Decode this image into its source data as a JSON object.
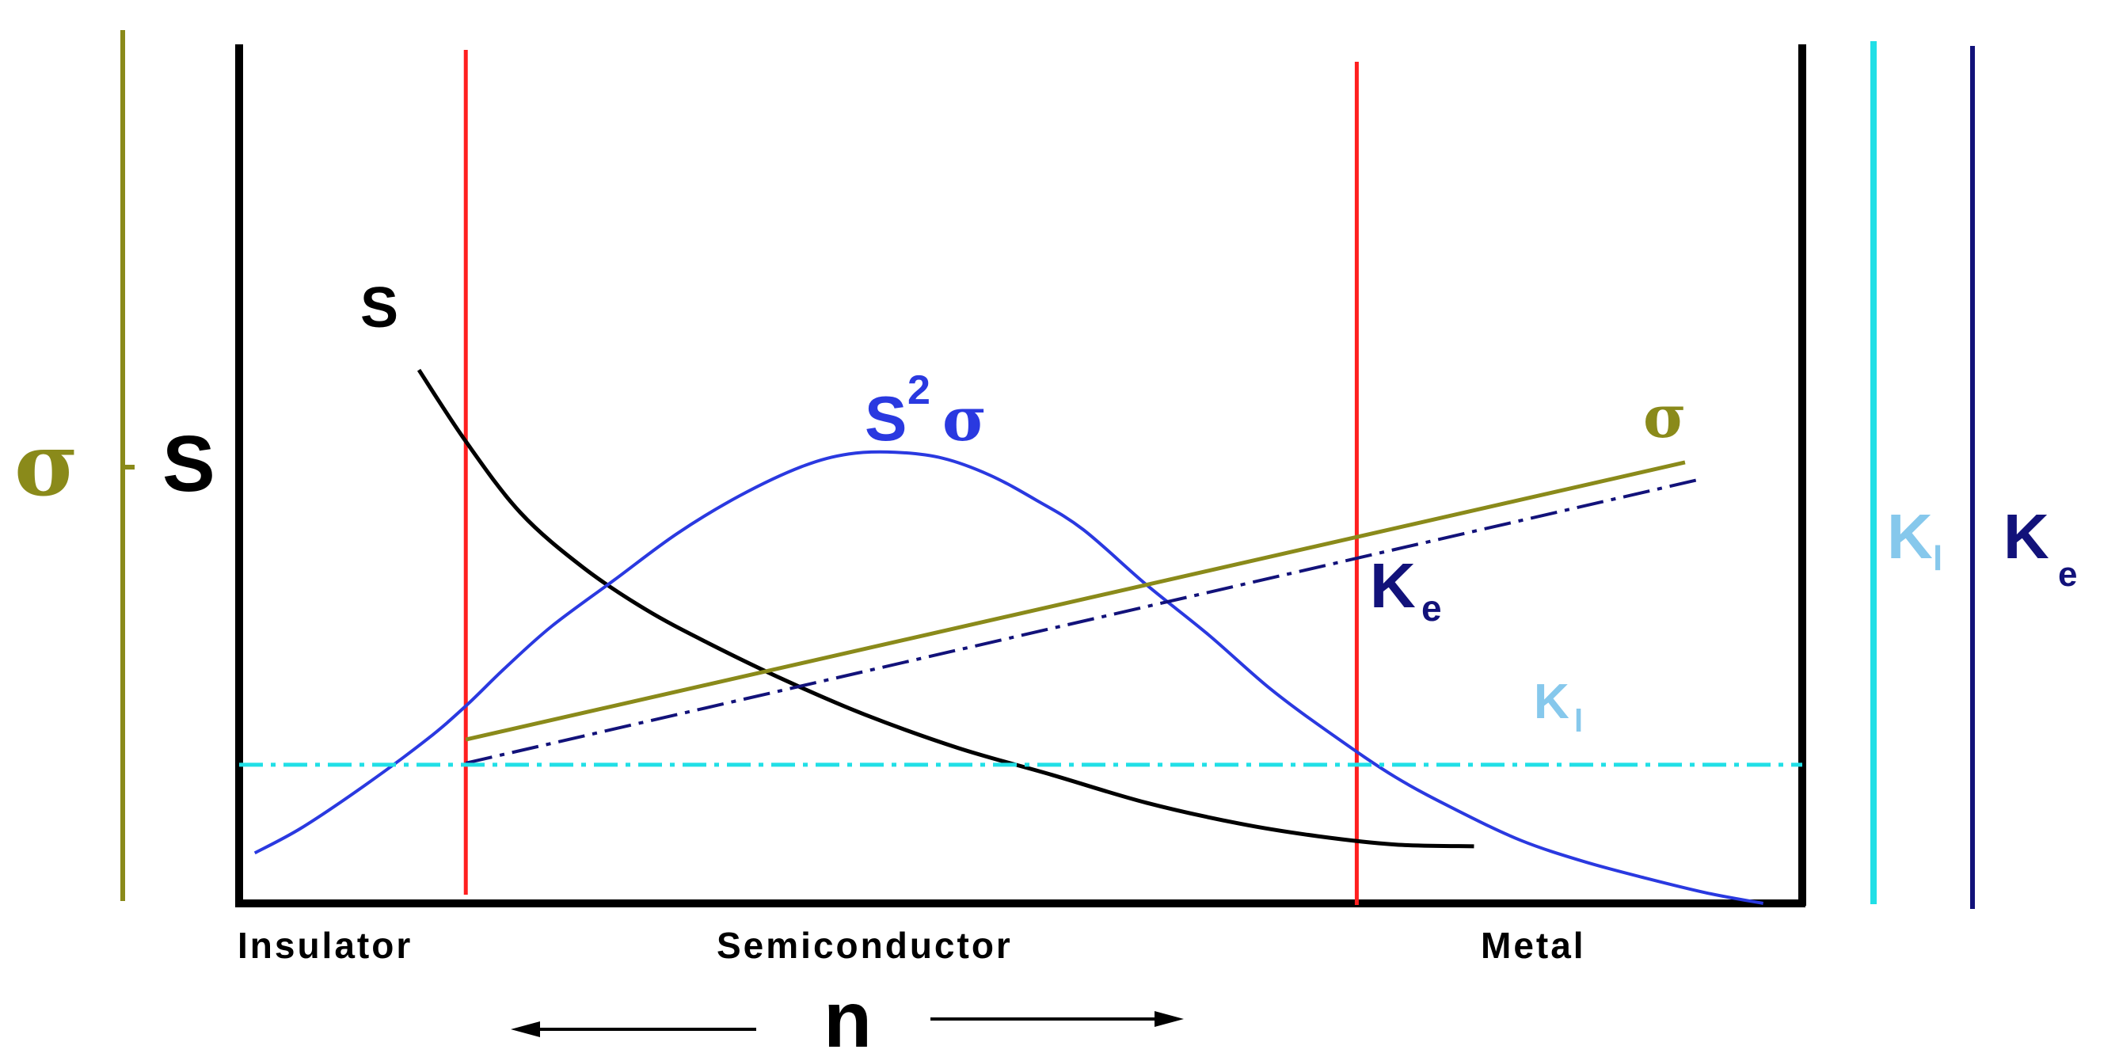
{
  "colors": {
    "sigma": "#8a8a1a",
    "seebeck": "#000000",
    "power_factor": "#2a39e0",
    "kappa_e": "#12127a",
    "kappa_l": "#21dfe6",
    "kappa_l_label": "#86c8ec",
    "region_boundary": "#ff1f1f"
  },
  "axes": {
    "left_sigma_label": "σ",
    "left_s_label": "S",
    "right_kl_label": "K",
    "right_kl_sub": "l",
    "right_ke_label": "K",
    "right_ke_sub": "e",
    "x_label": "n"
  },
  "regions": [
    "Insulator",
    "Semiconductor",
    "Metal"
  ],
  "curve_labels": {
    "s": "S",
    "pf_base": "S",
    "pf_sup": "2",
    "pf_tail": "σ",
    "sigma": "σ",
    "ke": "K",
    "ke_sub": "e",
    "kl": "K",
    "kl_sub": "l"
  },
  "chart_data": {
    "type": "line",
    "xlabel": "n",
    "xlim": [
      0,
      100
    ],
    "ylim": [
      0,
      100
    ],
    "region_boundaries_x": [
      14.5,
      71.5
    ],
    "series": [
      {
        "name": "S",
        "key": "s",
        "style": "solid",
        "x": [
          11.5,
          14.5,
          18,
          22,
          26,
          30,
          35,
          40,
          46,
          52,
          58,
          64,
          69,
          74,
          79
        ],
        "y": [
          63.5,
          55,
          46.5,
          40,
          35,
          31,
          26.5,
          22.5,
          18.5,
          15.3,
          12,
          9.5,
          8,
          7,
          6.8
        ]
      },
      {
        "name": "S²σ",
        "key": "pf",
        "style": "solid",
        "x": [
          1,
          4,
          8,
          12,
          14.5,
          17,
          20,
          24,
          28,
          32,
          36,
          39,
          42,
          45,
          48,
          51,
          54,
          58,
          62,
          66,
          70,
          74,
          78,
          82,
          86,
          90,
          94,
          97.5
        ],
        "y": [
          6,
          9,
          14,
          19.5,
          23.5,
          28,
          33,
          38.5,
          44,
          48.5,
          52,
          53.5,
          53.7,
          53,
          51,
          48,
          44.5,
          38,
          32,
          25.5,
          20,
          15,
          11,
          7.5,
          5,
          3,
          1.2,
          0
        ]
      },
      {
        "name": "σ",
        "key": "sigma",
        "style": "solid",
        "x": [
          14.5,
          92.5
        ],
        "y": [
          19.5,
          52.5
        ]
      },
      {
        "name": "Ke",
        "key": "ke",
        "style": "dash-dot",
        "x": [
          14.5,
          93.5
        ],
        "y": [
          16.7,
          50.5
        ]
      },
      {
        "name": "Kl",
        "key": "kl",
        "style": "dash-dot",
        "x": [
          0,
          100
        ],
        "y": [
          16.5,
          16.5
        ]
      }
    ]
  }
}
